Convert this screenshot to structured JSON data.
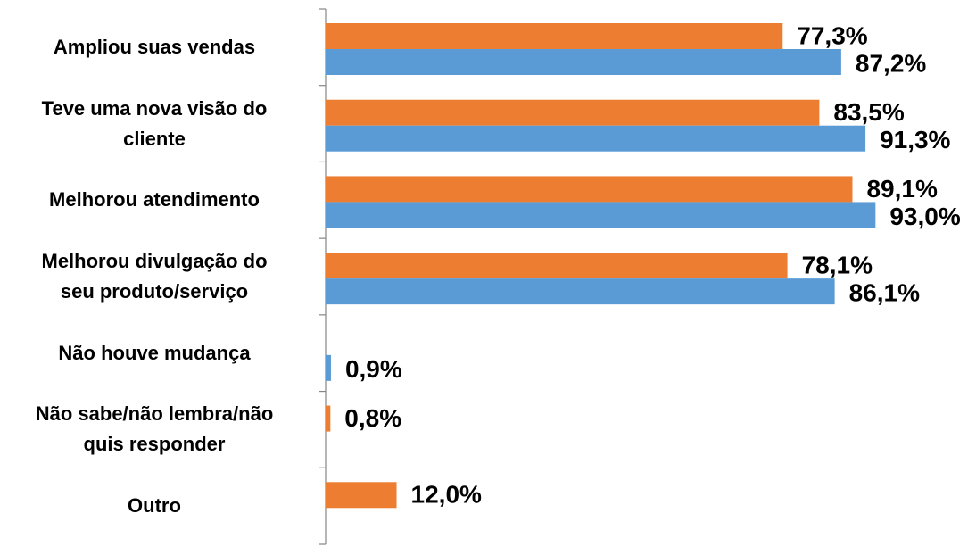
{
  "chart_data": {
    "type": "bar",
    "orientation": "horizontal",
    "categories": [
      "Ampliou suas vendas",
      "Teve uma nova visão do\ncliente",
      "Melhorou atendimento",
      "Melhorou divulgação do\nseu produto/serviço",
      "Não houve mudança",
      "Não sabe/não lembra/não\nquis responder",
      "Outro"
    ],
    "series": [
      {
        "color": "#ed7d31",
        "values": [
          77.3,
          83.5,
          89.1,
          78.1,
          null,
          0.8,
          12.0
        ],
        "value_labels": [
          "77,3%",
          "83,5%",
          "89,1%",
          "78,1%",
          null,
          "0,8%",
          "12,0%"
        ]
      },
      {
        "color": "#5b9bd5",
        "values": [
          87.2,
          91.3,
          93.0,
          86.1,
          0.9,
          null,
          null
        ],
        "value_labels": [
          "87,2%",
          "91,3%",
          "93,0%",
          "86,1%",
          "0,9%",
          null,
          null
        ]
      }
    ],
    "xlim": [
      0,
      110
    ]
  }
}
